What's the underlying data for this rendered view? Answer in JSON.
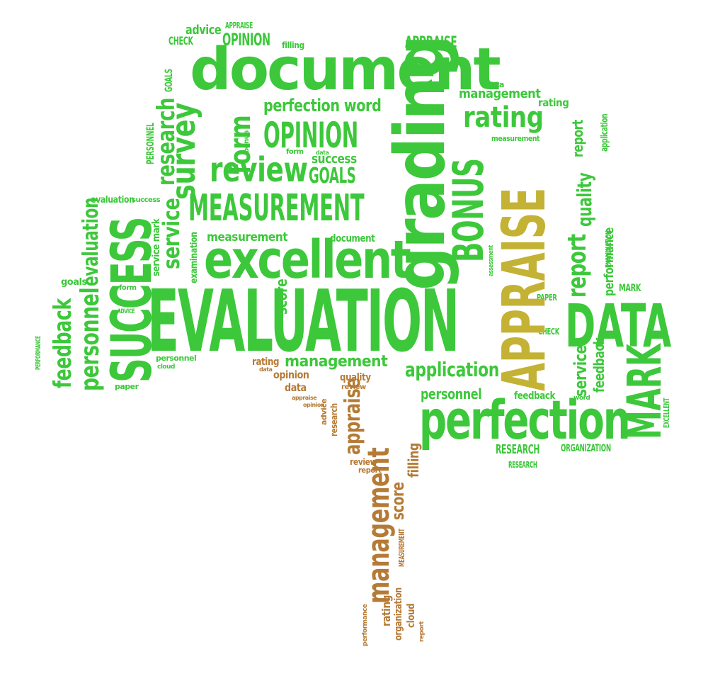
{
  "colors": {
    "canopy_green": "#3cc83a",
    "highlight_gold": "#c3b234",
    "trunk_brown": "#b57a35",
    "background": "#ffffff"
  },
  "words": {
    "document": "document",
    "evaluation": "EVALUATION",
    "appraise_big": "APPRAISE",
    "excellent": "excellent",
    "success_big": "SUCCESS",
    "grading": "grading",
    "perfection": "perfection",
    "data_big": "DATA",
    "mark_big": "MARK",
    "measurement_caps": "MEASUREMENT",
    "review": "review",
    "opinion_caps": "OPINION",
    "opinion_small_caps": "OPINION",
    "bonus_caps": "BONUS",
    "survey": "survey",
    "form_big": "form",
    "rating": "rating",
    "research": "research",
    "personnel": "personnel",
    "feedback": "feedback",
    "evaluation_small": "evaluation",
    "service": "service",
    "report": "report",
    "quality": "quality",
    "application": "application",
    "management": "management",
    "management_top": "management",
    "perfection_word": "perfection word",
    "goals_caps": "GOALS",
    "success_small": "success",
    "advice": "advice",
    "check": "CHECK",
    "filling": "filling",
    "appraise_top": "APPRAISE",
    "appraise_tiny": "APPRAISE",
    "research_caps": "RESEARCH",
    "research_caps_small": "RESEARCH",
    "organization_caps": "ORGANIZATION",
    "personnel_right": "personnel",
    "feedback_right": "feedback",
    "service_right": "service",
    "performance": "performance",
    "mark_caps": "MARK",
    "paper_caps": "PAPER",
    "check_caps": "CHECK",
    "examination": "EXAMINATION",
    "excellent_caps": "EXCELLENT",
    "rating_small": "rating",
    "data_small": "data",
    "measurement_small": "measurement",
    "goals_tiny": "GOALS",
    "measurement_mid": "measurement",
    "document_small": "document",
    "score": "score",
    "examination_small": "examination",
    "service_mark": "service mark",
    "goals_left": "goals",
    "form_left": "form",
    "advice_caps": "ADVICE",
    "performance_caps": "PERFORMANCE",
    "evaluation_left": "evaluation",
    "success_left": "success",
    "personnel_left": "personnel",
    "cloud_left": "cloud",
    "paper_left": "paper",
    "trunk_management": "management",
    "trunk_appraise": "appraise",
    "trunk_score": "score",
    "trunk_filling": "filling",
    "trunk_rating": "rating",
    "trunk_organization": "organization",
    "trunk_cloud": "cloud",
    "trunk_opinion": "opinion",
    "trunk_data": "data",
    "trunk_quality": "quality",
    "trunk_review": "review",
    "trunk_report": "report",
    "trunk_research": "research",
    "trunk_advice": "advice",
    "trunk_measurement": "MEASUREMENT",
    "trunk_performance": "performance",
    "trunk_report2": "report",
    "trunk_review2": "review",
    "trunk_rating_small": "rating",
    "trunk_data_small": "data",
    "trunk_appraise_small": "appraise",
    "trunk_opinion_small": "opinion",
    "personnel_small_caps": "PERSONNEL",
    "word": "word",
    "application_small": "application",
    "assessment": "assessment",
    "bonus_small": "bonus",
    "form_small": "form",
    "data_tiny": "data"
  }
}
